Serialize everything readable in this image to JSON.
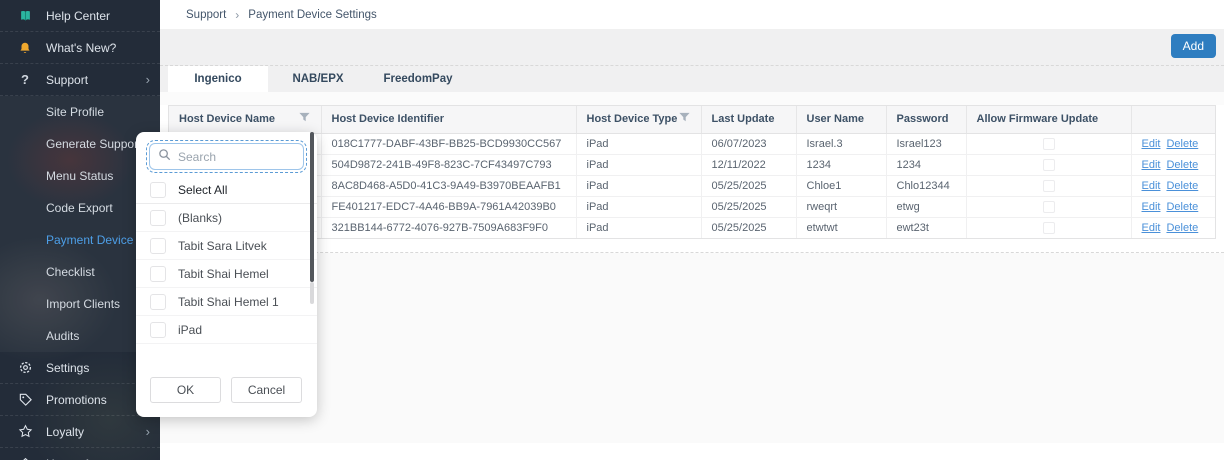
{
  "breadcrumb": {
    "items": [
      "Support",
      "Payment Device Settings"
    ],
    "separator": "›"
  },
  "header": {
    "add_button": "Add"
  },
  "colors": {
    "accent_blue": "#2e7dc0",
    "link_blue": "#4a90d9",
    "active_nav": "#4d9fe8",
    "sidebar_bg": "#232c39"
  },
  "sidebar": {
    "items": [
      {
        "label": "Help Center",
        "icon": "book-icon",
        "type": "top"
      },
      {
        "label": "What's New?",
        "icon": "bell-icon",
        "type": "top"
      },
      {
        "label": "Support",
        "icon": "question-icon",
        "type": "top",
        "expandable": true
      },
      {
        "label": "Site Profile",
        "type": "sub"
      },
      {
        "label": "Generate Support Code",
        "type": "sub"
      },
      {
        "label": "Menu Status",
        "type": "sub"
      },
      {
        "label": "Code Export",
        "type": "sub"
      },
      {
        "label": "Payment Device Settings",
        "type": "sub",
        "active": true
      },
      {
        "label": "Checklist",
        "type": "sub"
      },
      {
        "label": "Import Clients",
        "type": "sub"
      },
      {
        "label": "Audits",
        "type": "sub"
      },
      {
        "label": "Settings",
        "icon": "gear-icon",
        "type": "top"
      },
      {
        "label": "Promotions",
        "icon": "tag-icon",
        "type": "top"
      },
      {
        "label": "Loyalty",
        "icon": "star-icon",
        "type": "top",
        "expandable": true
      },
      {
        "label": "House Accounts",
        "icon": "home-icon",
        "type": "top"
      }
    ]
  },
  "tabs": [
    {
      "label": "Ingenico",
      "active": true
    },
    {
      "label": "NAB/EPX",
      "active": false
    },
    {
      "label": "FreedomPay",
      "active": false
    }
  ],
  "table": {
    "columns": [
      {
        "label": "Host Device Name",
        "filter": true
      },
      {
        "label": "Host Device Identifier",
        "filter": false
      },
      {
        "label": "Host Device Type",
        "filter": true
      },
      {
        "label": "Last Update",
        "filter": false
      },
      {
        "label": "User Name",
        "filter": false
      },
      {
        "label": "Password",
        "filter": false
      },
      {
        "label": "Allow Firmware Update",
        "filter": false
      },
      {
        "label": "",
        "filter": false
      }
    ],
    "rows": [
      {
        "name": "",
        "identifier": "018C1777-DABF-43BF-BB25-BCD9930CC567",
        "type": "iPad",
        "last_update": "06/07/2023",
        "user_name": "Israel.3",
        "password": "Israel123",
        "allow_firmware_update": false
      },
      {
        "name": "",
        "identifier": "504D9872-241B-49F8-823C-7CF43497C793",
        "type": "iPad",
        "last_update": "12/11/2022",
        "user_name": "1234",
        "password": "1234",
        "allow_firmware_update": false
      },
      {
        "name": "",
        "identifier": "8AC8D468-A5D0-41C3-9A49-B3970BEAAFB1",
        "type": "iPad",
        "last_update": "05/25/2025",
        "user_name": "Chloe1",
        "password": "Chlo12344",
        "allow_firmware_update": false
      },
      {
        "name": "",
        "identifier": "FE401217-EDC7-4A46-BB9A-7961A42039B0",
        "type": "iPad",
        "last_update": "05/25/2025",
        "user_name": "rweqrt",
        "password": "etwg",
        "allow_firmware_update": false
      },
      {
        "name": "",
        "identifier": "321BB144-6772-4076-927B-7509A683F9F0",
        "type": "iPad",
        "last_update": "05/25/2025",
        "user_name": "etwtwt",
        "password": "ewt23t",
        "allow_firmware_update": false
      }
    ],
    "actions": {
      "edit": "Edit",
      "delete": "Delete"
    }
  },
  "filter_popup": {
    "search_placeholder": "Search",
    "options": [
      "Select All",
      "(Blanks)",
      "Tabit Sara Litvek",
      "Tabit Shai Hemel",
      "Tabit Shai Hemel 1",
      "iPad"
    ],
    "ok_label": "OK",
    "cancel_label": "Cancel"
  }
}
